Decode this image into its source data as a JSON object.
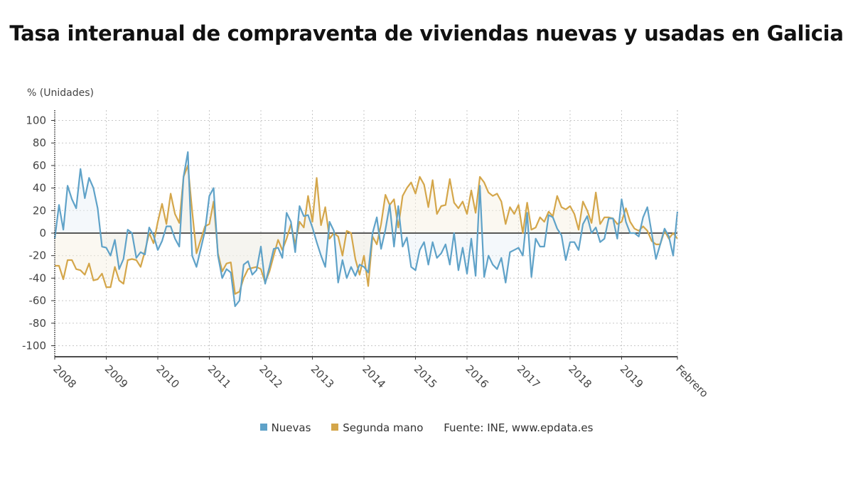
{
  "chart_data": {
    "type": "line",
    "title": "Tasa interanual de compraventa de viviendas nuevas y usadas en Galicia",
    "ylabel": "% (Unidades)",
    "xlabel": "",
    "ylim": [
      -105,
      110
    ],
    "yticks": [
      100,
      80,
      60,
      40,
      20,
      0,
      -20,
      -40,
      -60,
      -80,
      -100
    ],
    "xtick_labels": [
      "2008",
      "2009",
      "2010",
      "2011",
      "2012",
      "2013",
      "2014",
      "2015",
      "2016",
      "2017",
      "2018",
      "2019",
      "Febrero"
    ],
    "x_start": "2008-01",
    "x_end": "2020-02",
    "frequency": "monthly",
    "grid": true,
    "legend_position": "bottom",
    "source": "Fuente: INE, www.epdata.es",
    "series": [
      {
        "name": "Nuevas",
        "color": "#5fa2c8",
        "values": [
          -5,
          25,
          3,
          42,
          30,
          22,
          57,
          31,
          49,
          40,
          22,
          -12,
          -13,
          -20,
          -6,
          -32,
          -23,
          3,
          0,
          -22,
          -17,
          -19,
          5,
          -2,
          -15,
          -7,
          6,
          6,
          -5,
          -12,
          50,
          72,
          -20,
          -30,
          -14,
          2,
          33,
          40,
          -20,
          -40,
          -32,
          -35,
          -65,
          -60,
          -28,
          -25,
          -37,
          -33,
          -12,
          -45,
          -30,
          -14,
          -13,
          -22,
          18,
          10,
          -17,
          24,
          15,
          16,
          5,
          -8,
          -20,
          -30,
          10,
          2,
          -44,
          -24,
          -40,
          -30,
          -38,
          -28,
          -30,
          -35,
          0,
          14,
          -14,
          3,
          25,
          -12,
          24,
          -12,
          -4,
          -30,
          -33,
          -15,
          -8,
          -28,
          -8,
          -22,
          -18,
          -10,
          -28,
          0,
          -33,
          -13,
          -36,
          -5,
          -38,
          42,
          -39,
          -20,
          -28,
          -32,
          -22,
          -44,
          -17,
          -15,
          -13,
          -20,
          18,
          -39,
          -5,
          -12,
          -12,
          16,
          14,
          4,
          -2,
          -24,
          -8,
          -8,
          -15,
          8,
          15,
          0,
          5,
          -8,
          -5,
          13,
          13,
          -5,
          30,
          10,
          0,
          0,
          -3,
          14,
          23,
          0,
          -23,
          -10,
          4,
          -3,
          -20,
          19
        ]
      },
      {
        "name": "Segunda mano",
        "color": "#d4a64a",
        "values": [
          -29,
          -29,
          -41,
          -24,
          -24,
          -32,
          -33,
          -37,
          -27,
          -42,
          -41,
          -36,
          -48,
          -48,
          -30,
          -42,
          -45,
          -24,
          -23,
          -24,
          -30,
          -16,
          0,
          -9,
          10,
          26,
          8,
          35,
          17,
          9,
          50,
          60,
          20,
          -18,
          -6,
          6,
          8,
          28,
          -18,
          -34,
          -27,
          -26,
          -54,
          -52,
          -40,
          -32,
          -31,
          -30,
          -32,
          -44,
          -34,
          -20,
          -6,
          -15,
          -5,
          8,
          -10,
          10,
          5,
          33,
          10,
          49,
          7,
          23,
          -5,
          0,
          -3,
          -20,
          2,
          0,
          -23,
          -37,
          -20,
          -47,
          -3,
          -10,
          8,
          34,
          25,
          30,
          5,
          33,
          40,
          45,
          35,
          50,
          43,
          23,
          47,
          17,
          24,
          25,
          48,
          27,
          22,
          28,
          17,
          38,
          18,
          50,
          45,
          36,
          33,
          35,
          28,
          8,
          23,
          17,
          25,
          0,
          27,
          3,
          5,
          14,
          10,
          19,
          15,
          33,
          23,
          21,
          24,
          17,
          3,
          28,
          20,
          9,
          36,
          8,
          14,
          14,
          13,
          8,
          10,
          22,
          10,
          4,
          2,
          6,
          2,
          -7,
          -10,
          -10,
          2,
          -5,
          0,
          -5
        ]
      }
    ]
  },
  "legend": {
    "items": [
      {
        "label": "Nuevas",
        "color": "#5fa2c8"
      },
      {
        "label": "Segunda mano",
        "color": "#d4a64a"
      }
    ],
    "source": "Fuente: INE, www.epdata.es"
  }
}
